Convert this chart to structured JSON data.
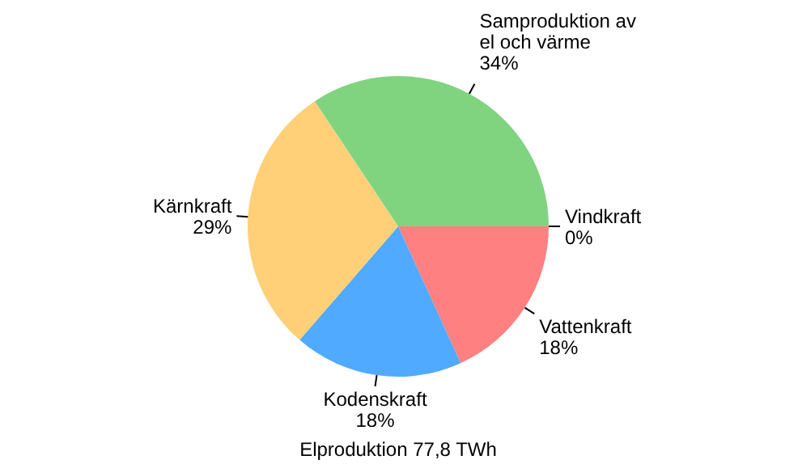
{
  "chart_data": {
    "type": "pie",
    "title": "Elproduktion 77,8 TWh",
    "categories": [
      "Vindkraft",
      "Vattenkraft",
      "Kodenskraft",
      "Kärnkraft",
      "Samproduktion av el och värme"
    ],
    "values": [
      0,
      18,
      18,
      29,
      34
    ],
    "value_labels": [
      "0%",
      "18%",
      "18%",
      "29%",
      "34%"
    ],
    "colors": [
      "#00a0a0",
      "#ff8080",
      "#50aaff",
      "#ffd078",
      "#80d480"
    ]
  }
}
